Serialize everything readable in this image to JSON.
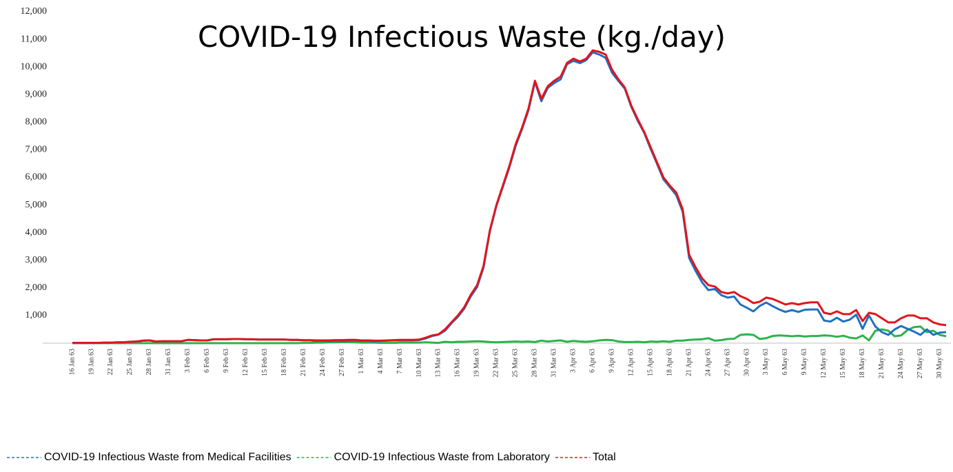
{
  "chart_data": {
    "type": "line",
    "title": "COVID-19 Infectious Waste (kg./day)",
    "categories": [
      "16 Jan 63",
      null,
      null,
      "19 Jan 63",
      null,
      null,
      "22 Jan 63",
      null,
      null,
      "25 Jan 63",
      null,
      null,
      "28 Jan 63",
      null,
      null,
      "31 Jan 63",
      null,
      null,
      "3 Feb 63",
      null,
      null,
      "6 Feb 63",
      null,
      null,
      "9 Feb 63",
      null,
      null,
      "12 Feb 63",
      null,
      null,
      "15 Feb 63",
      null,
      null,
      "18 Feb 63",
      null,
      null,
      "21 Feb 63",
      null,
      null,
      "24 Feb 63",
      null,
      null,
      "27 Feb 63",
      null,
      null,
      "1 Mar 63",
      null,
      null,
      "4 Mar 63",
      null,
      null,
      "7 Mar 63",
      null,
      null,
      "10 Mar 63",
      null,
      null,
      "13 Mar 63",
      null,
      null,
      "16 Mar 63",
      null,
      null,
      "19 Mar 63",
      null,
      null,
      "22 Mar 63",
      null,
      null,
      "25 Mar 63",
      null,
      null,
      "28 Mar 63",
      null,
      null,
      "31 Mar 63",
      null,
      null,
      "3 Apr 63",
      null,
      null,
      "6 Apr 63",
      null,
      null,
      "9 Apr 63",
      null,
      null,
      "12 Apr 63",
      null,
      null,
      "15 Apr 63",
      null,
      null,
      "18 Apr 63",
      null,
      null,
      "21 Apr 63",
      null,
      null,
      "24 Apr 63",
      null,
      null,
      "27 Apr 63",
      null,
      null,
      "30 Apr 63",
      null,
      null,
      "3 May 63",
      null,
      null,
      "6 May 63",
      null,
      null,
      "9 May 63",
      null,
      null,
      "12 May 63",
      null,
      null,
      "15 May 63",
      null,
      null,
      "18 May 63",
      null,
      null,
      "21 May 63",
      null,
      null,
      "24 May 63",
      null,
      null,
      "27 May 63",
      null,
      null,
      "30 May 63",
      null
    ],
    "series": [
      {
        "name": "COVID-19 Infectious Waste from Laboratory",
        "color": "#2db34a",
        "values": [
          0,
          0,
          0,
          0,
          0,
          0,
          0,
          0,
          0,
          0,
          0,
          0,
          0,
          0,
          0,
          0,
          0,
          0,
          0,
          0,
          0,
          0,
          0,
          0,
          0,
          0,
          0,
          0,
          0,
          0,
          0,
          0,
          0,
          0,
          0,
          0,
          10,
          10,
          20,
          20,
          30,
          30,
          40,
          40,
          30,
          20,
          20,
          20,
          10,
          10,
          10,
          20,
          20,
          20,
          20,
          30,
          20,
          10,
          50,
          30,
          50,
          50,
          60,
          70,
          60,
          40,
          30,
          40,
          50,
          60,
          50,
          60,
          40,
          90,
          60,
          80,
          100,
          50,
          80,
          60,
          50,
          70,
          100,
          120,
          110,
          60,
          40,
          40,
          50,
          30,
          60,
          50,
          70,
          50,
          90,
          90,
          120,
          130,
          140,
          180,
          90,
          110,
          150,
          160,
          300,
          320,
          300,
          150,
          180,
          260,
          280,
          270,
          250,
          270,
          240,
          260,
          260,
          280,
          270,
          230,
          270,
          200,
          170,
          280,
          100,
          450,
          500,
          450,
          250,
          280,
          480,
          580,
          600,
          400,
          450,
          300,
          250
        ]
      },
      {
        "name": "COVID-19 Infectious Waste from Medical Facilities",
        "color": "#1f70c1",
        "values": [
          10,
          10,
          10,
          10,
          10,
          20,
          20,
          30,
          30,
          50,
          60,
          90,
          100,
          60,
          70,
          70,
          70,
          70,
          120,
          110,
          100,
          100,
          140,
          140,
          140,
          150,
          150,
          140,
          140,
          130,
          130,
          130,
          130,
          130,
          120,
          120,
          100,
          100,
          80,
          80,
          70,
          80,
          70,
          80,
          90,
          80,
          80,
          70,
          80,
          90,
          100,
          100,
          100,
          100,
          110,
          170,
          260,
          310,
          450,
          720,
          950,
          1250,
          1690,
          2030,
          2740,
          4060,
          4970,
          5660,
          6350,
          7140,
          7750,
          8440,
          9460,
          8760,
          9240,
          9420,
          9550,
          10100,
          10220,
          10140,
          10250,
          10530,
          10450,
          10330,
          9790,
          9490,
          9210,
          8560,
          8050,
          7620,
          7040,
          6500,
          5930,
          5650,
          5360,
          4760,
          3080,
          2620,
          2210,
          1920,
          1960,
          1740,
          1650,
          1690,
          1400,
          1280,
          1150,
          1350,
          1470,
          1340,
          1220,
          1130,
          1200,
          1130,
          1210,
          1220,
          1220,
          820,
          780,
          920,
          780,
          850,
          1030,
          520,
          1000,
          600,
          400,
          300,
          500,
          620,
          520,
          420,
          300,
          500,
          300,
          380,
          400
        ]
      },
      {
        "name": "Total",
        "color": "#e3141b",
        "values": [
          10,
          10,
          10,
          10,
          10,
          20,
          20,
          30,
          30,
          50,
          60,
          90,
          100,
          60,
          70,
          70,
          70,
          70,
          120,
          110,
          100,
          100,
          140,
          140,
          140,
          150,
          150,
          140,
          140,
          130,
          130,
          130,
          130,
          130,
          120,
          120,
          110,
          110,
          100,
          100,
          100,
          110,
          110,
          120,
          120,
          100,
          100,
          90,
          90,
          100,
          110,
          120,
          120,
          120,
          130,
          200,
          280,
          320,
          500,
          750,
          1000,
          1300,
          1750,
          2100,
          2800,
          4100,
          5000,
          5700,
          6400,
          7200,
          7800,
          8500,
          9500,
          8850,
          9300,
          9500,
          9650,
          10150,
          10300,
          10200,
          10300,
          10600,
          10550,
          10450,
          9900,
          9550,
          9250,
          8600,
          8100,
          7650,
          7100,
          6550,
          6000,
          5700,
          5450,
          4850,
          3200,
          2750,
          2350,
          2100,
          2050,
          1850,
          1800,
          1850,
          1700,
          1600,
          1450,
          1500,
          1650,
          1600,
          1500,
          1400,
          1450,
          1400,
          1450,
          1480,
          1480,
          1100,
          1050,
          1150,
          1050,
          1050,
          1200,
          800,
          1100,
          1050,
          900,
          750,
          750,
          900,
          1000,
          1000,
          900,
          900,
          750,
          680,
          650
        ]
      }
    ],
    "ylim": [
      0,
      12000
    ],
    "yticks": [
      {
        "value": 0,
        "label": "-"
      },
      {
        "value": 1000,
        "label": "1,000"
      },
      {
        "value": 2000,
        "label": "2,000"
      },
      {
        "value": 3000,
        "label": "3,000"
      },
      {
        "value": 4000,
        "label": "4,000"
      },
      {
        "value": 5000,
        "label": "5,000"
      },
      {
        "value": 6000,
        "label": "6,000"
      },
      {
        "value": 7000,
        "label": "7,000"
      },
      {
        "value": 8000,
        "label": "8,000"
      },
      {
        "value": 9000,
        "label": "9,000"
      },
      {
        "value": 10000,
        "label": "10,000"
      },
      {
        "value": 11000,
        "label": "11,000"
      },
      {
        "value": 12000,
        "label": "12,000"
      }
    ],
    "legend": "bottom"
  }
}
